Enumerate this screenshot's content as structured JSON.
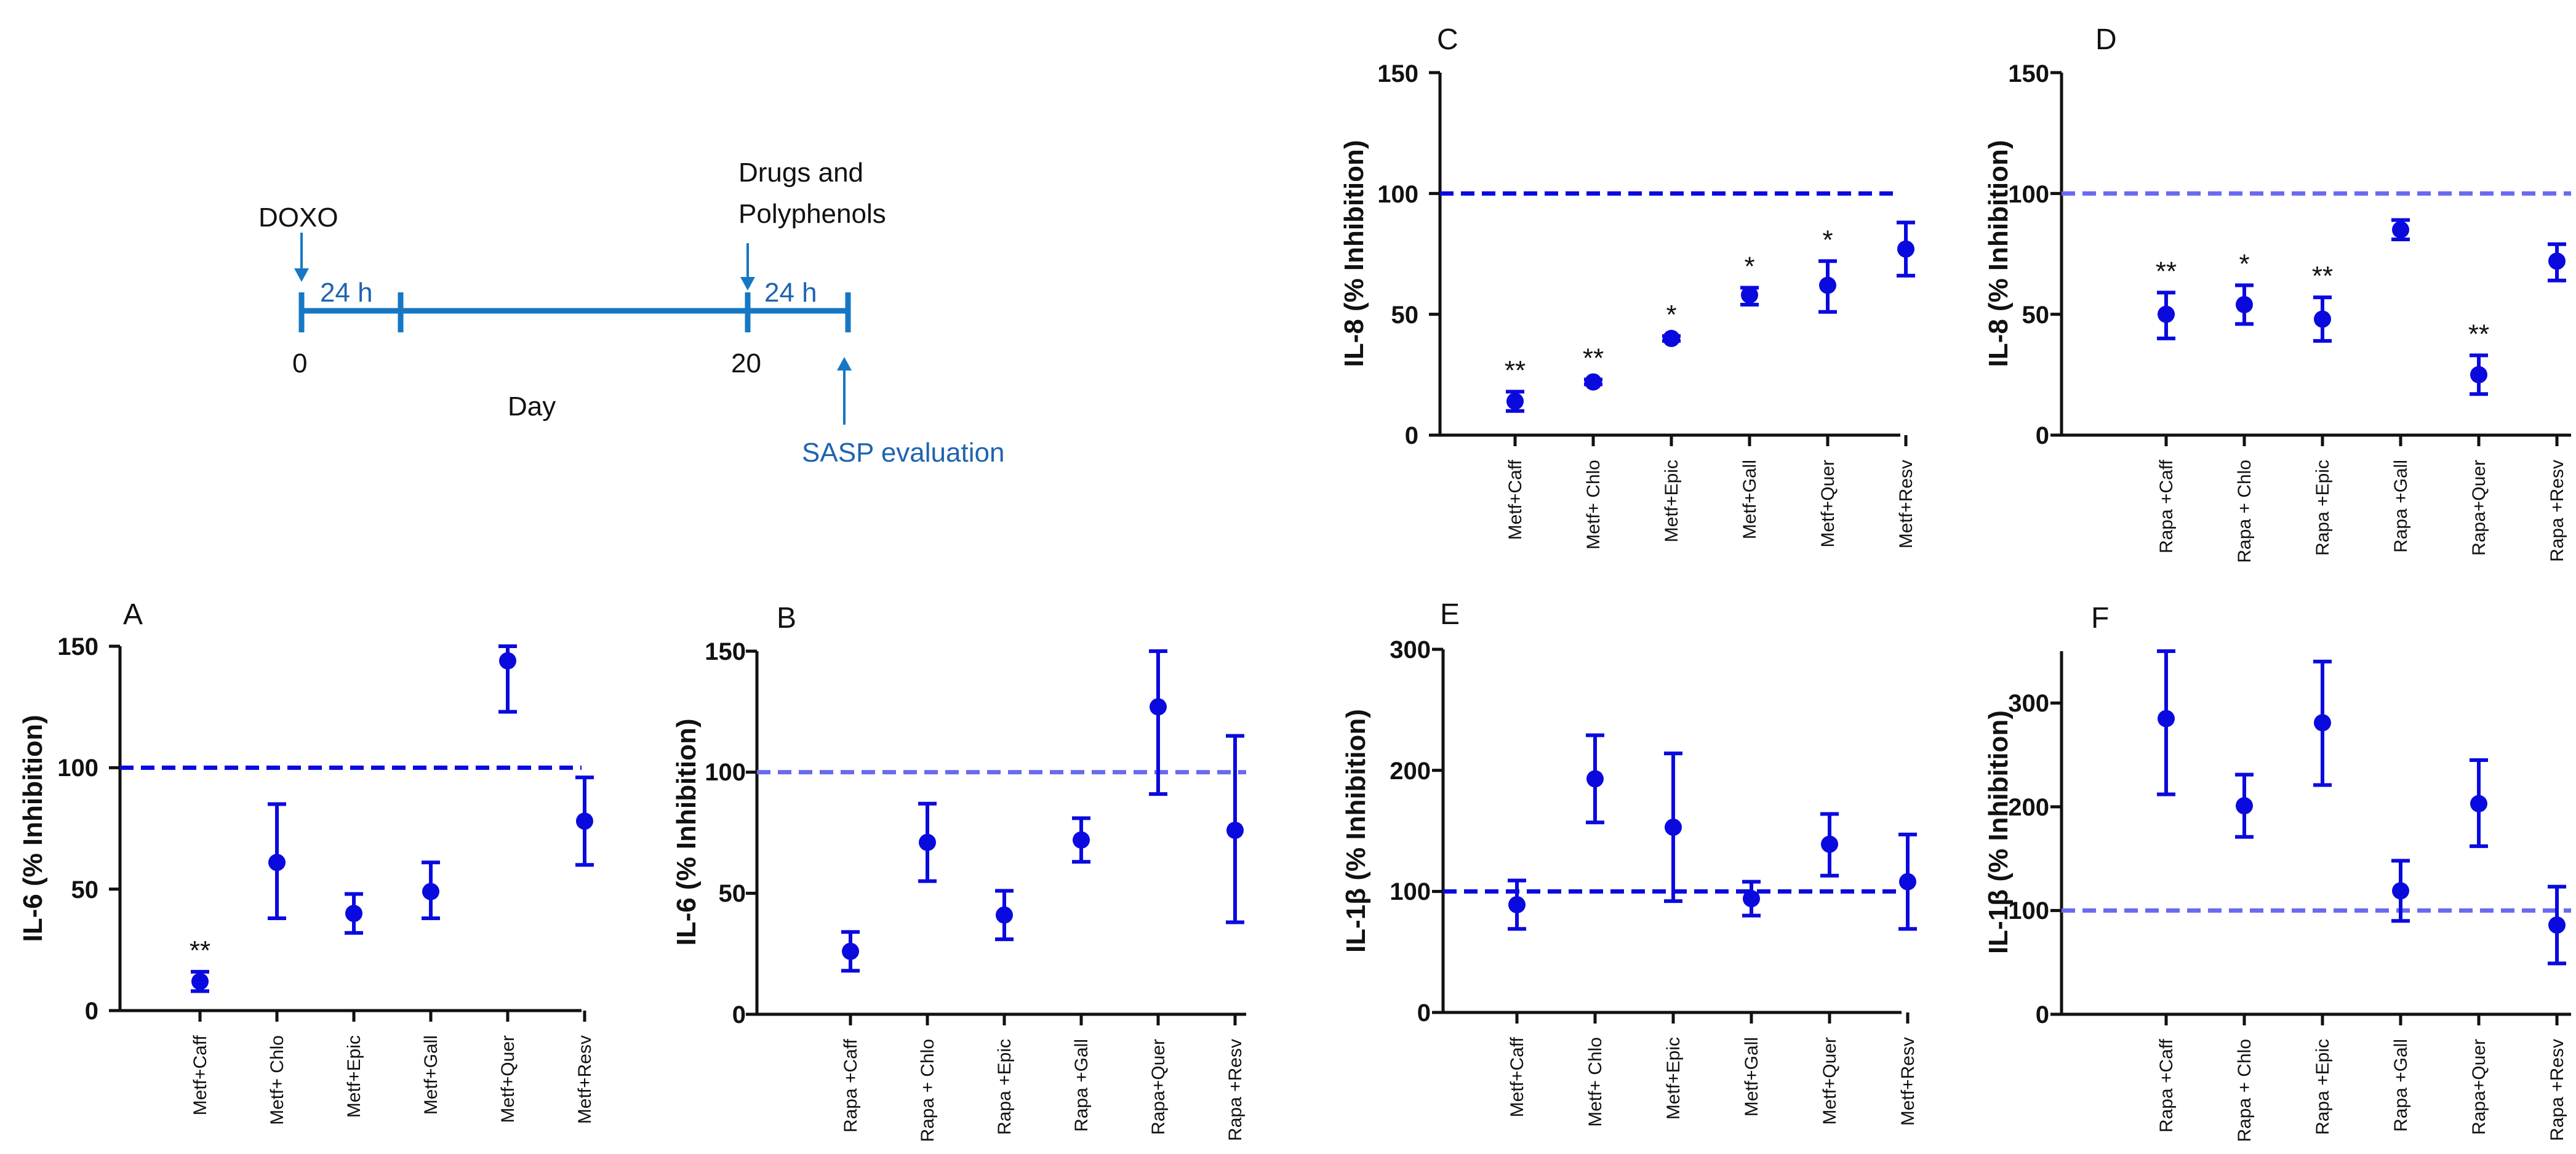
{
  "timeline": {
    "doxo_label": "DOXO",
    "drugs_label_line1": "Drugs and",
    "drugs_label_line2": "Polyphenols",
    "interval1_label": "24 h",
    "interval2_label": "24 h",
    "tick_start": "0",
    "tick_mid": "20",
    "day_label": "Day",
    "sasp_label": "SASP evaluation",
    "line_color": "#1677c4",
    "text_color": "#111111",
    "sasp_color": "#1f63b0"
  },
  "colors": {
    "marker": "#0a0adf",
    "dashed_dark": "#0a0adf",
    "dashed_light": "#6a6af0",
    "axis": "#111111"
  },
  "chart_data": [
    {
      "id": "C",
      "panel_letter": "C",
      "type": "scatter",
      "ylabel": "IL-8 (% Inhibition)",
      "ylim": [
        0,
        150
      ],
      "yticks": [
        "0",
        "50",
        "100",
        "150"
      ],
      "categories": [
        "Metf+Caff",
        "Metf+ Chlo",
        "Metf+Epic",
        "Metf+Gall",
        "Metf+Quer",
        "Metf+Resv"
      ],
      "values": [
        14,
        22,
        40,
        58,
        62,
        77
      ],
      "err_low": [
        10,
        21,
        39,
        54,
        51,
        66
      ],
      "err_high": [
        18,
        23,
        41,
        61,
        72,
        88
      ],
      "significance": [
        "**",
        "**",
        "*",
        "*",
        "*",
        ""
      ],
      "reference_line": 100,
      "reference_style": "dark"
    },
    {
      "id": "D",
      "panel_letter": "D",
      "type": "scatter",
      "ylabel": "IL-8 (% Inhibition)",
      "ylim": [
        0,
        150
      ],
      "yticks": [
        "0",
        "50",
        "100",
        "150"
      ],
      "categories": [
        "Rapa +Caff",
        "Rapa + Chlo",
        "Rapa +Epic",
        "Rapa +Gall",
        "Rapa+Quer",
        "Rapa +Resv"
      ],
      "values": [
        50,
        54,
        48,
        85,
        25,
        72
      ],
      "err_low": [
        40,
        46,
        39,
        81,
        17,
        64
      ],
      "err_high": [
        59,
        62,
        57,
        89,
        33,
        79
      ],
      "significance": [
        "**",
        "*",
        "**",
        "",
        "**",
        ""
      ],
      "reference_line": 100,
      "reference_style": "light"
    },
    {
      "id": "A",
      "panel_letter": "A",
      "type": "scatter",
      "ylabel": "IL-6 (% Inhibition)",
      "ylim": [
        0,
        150
      ],
      "yticks": [
        "0",
        "50",
        "100",
        "150"
      ],
      "categories": [
        "Metf+Caff",
        "Metf+ Chlo",
        "Metf+Epic",
        "Metf+Gall",
        "Metf+Quer",
        "Metf+Resv"
      ],
      "values": [
        12,
        61,
        40,
        49,
        144,
        78
      ],
      "err_low": [
        8,
        38,
        32,
        38,
        123,
        60
      ],
      "err_high": [
        16,
        85,
        48,
        61,
        150,
        96
      ],
      "significance": [
        "**",
        "",
        "",
        "",
        "",
        ""
      ],
      "reference_line": 100,
      "reference_style": "dark"
    },
    {
      "id": "B",
      "panel_letter": "B",
      "type": "scatter",
      "ylabel": "IL-6 (% Inhibition)",
      "ylim": [
        0,
        150
      ],
      "yticks": [
        "0",
        "50",
        "100",
        "150"
      ],
      "categories": [
        "Rapa +Caff",
        "Rapa + Chlo",
        "Rapa +Epic",
        "Rapa +Gall",
        "Rapa+Quer",
        "Rapa +Resv"
      ],
      "values": [
        26,
        71,
        41,
        72,
        127,
        76
      ],
      "err_low": [
        18,
        55,
        31,
        63,
        91,
        38
      ],
      "err_high": [
        34,
        87,
        51,
        81,
        150,
        115
      ],
      "significance": [
        "",
        "",
        "",
        "",
        "",
        ""
      ],
      "reference_line": 100,
      "reference_style": "light"
    },
    {
      "id": "E",
      "panel_letter": "E",
      "type": "scatter",
      "ylabel": "IL-1β (% Inhibition)",
      "ylim": [
        0,
        300
      ],
      "yticks": [
        "0",
        "100",
        "200",
        "300"
      ],
      "categories": [
        "Metf+Caff",
        "Metf+ Chlo",
        "Metf+Epic",
        "Metf+Gall",
        "Metf+Quer",
        "Metf+Resv"
      ],
      "values": [
        89,
        193,
        153,
        94,
        139,
        108
      ],
      "err_low": [
        69,
        157,
        92,
        80,
        113,
        69
      ],
      "err_high": [
        109,
        229,
        214,
        108,
        164,
        147
      ],
      "significance": [
        "",
        "",
        "",
        "",
        "",
        ""
      ],
      "reference_line": 100,
      "reference_style": "dark"
    },
    {
      "id": "F",
      "panel_letter": "F",
      "type": "scatter",
      "ylabel": "IL-1β (% Inhibition)",
      "ylim": [
        0,
        350
      ],
      "yticks": [
        "0",
        "100",
        "200",
        "300"
      ],
      "categories": [
        "Rapa +Caff",
        "Rapa + Chlo",
        "Rapa +Epic",
        "Rapa +Gall",
        "Rapa+Quer",
        "Rapa +Resv"
      ],
      "values": [
        285,
        201,
        281,
        119,
        203,
        86
      ],
      "err_low": [
        212,
        171,
        221,
        90,
        162,
        49
      ],
      "err_high": [
        350,
        231,
        340,
        148,
        245,
        123
      ],
      "significance": [
        "",
        "",
        "",
        "",
        "",
        ""
      ],
      "reference_line": 100,
      "reference_style": "light"
    }
  ]
}
